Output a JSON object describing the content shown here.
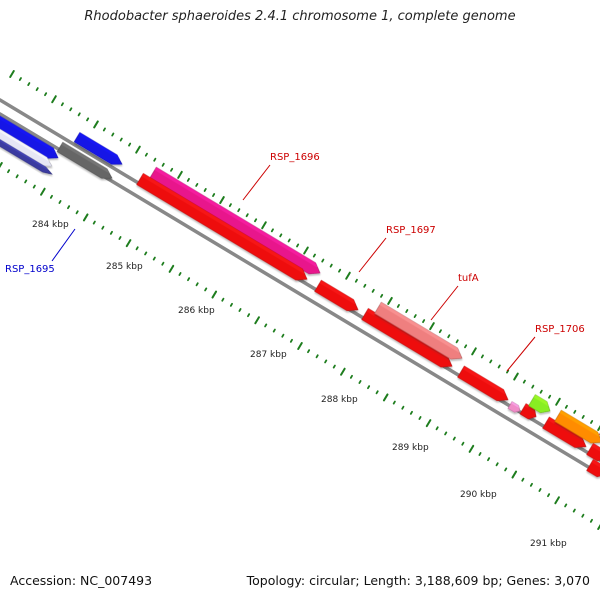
{
  "title": "Rhodobacter sphaeroides 2.4.1 chromosome 1, complete genome",
  "footer": {
    "accession": "Accession: NC_007493",
    "topology": "Topology: circular; Length: 3,188,609 bp; Genes: 3,070"
  },
  "colors": {
    "backbone": "#888888",
    "tick": "#1e7d1e",
    "gene_label_red": "#cc0000",
    "gene_label_blue": "#0000cc"
  },
  "kbp_labels": [
    "284 kbp",
    "285 kbp",
    "286 kbp",
    "287 kbp",
    "288 kbp",
    "289 kbp",
    "290 kbp",
    "291 kbp"
  ],
  "gene_labels": [
    {
      "text": "RSP_1695",
      "color": "#0000cc"
    },
    {
      "text": "RSP_1696",
      "color": "#cc0000"
    },
    {
      "text": "RSP_1697",
      "color": "#cc0000"
    },
    {
      "text": "tufA",
      "color": "#cc0000"
    },
    {
      "text": "RSP_1706",
      "color": "#cc0000"
    }
  ],
  "features": [
    {
      "name": "blue-feature",
      "color": "#1414e6"
    },
    {
      "name": "white-feature",
      "color": "#e6e6f5"
    },
    {
      "name": "navy-feature",
      "color": "#3a3aa0"
    },
    {
      "name": "blue-feature",
      "color": "#1414e6"
    },
    {
      "name": "gray-feature",
      "color": "#666666"
    },
    {
      "name": "magenta-feature",
      "color": "#e8198c"
    },
    {
      "name": "red-feature",
      "color": "#ee1111"
    },
    {
      "name": "red-feature",
      "color": "#ee1111"
    },
    {
      "name": "red-feature",
      "color": "#ee1111"
    },
    {
      "name": "salmon-feature",
      "color": "#ef7f7f"
    },
    {
      "name": "red-feature",
      "color": "#ee1111"
    },
    {
      "name": "red-feature",
      "color": "#ee1111"
    },
    {
      "name": "red-feature",
      "color": "#ee1111"
    },
    {
      "name": "pink-feature",
      "color": "#f08cc8"
    },
    {
      "name": "lime-feature",
      "color": "#88ee22"
    },
    {
      "name": "orange-feature",
      "color": "#ff8c00"
    },
    {
      "name": "red-feature",
      "color": "#ee1111"
    },
    {
      "name": "red-feature",
      "color": "#ee1111"
    },
    {
      "name": "red-feature",
      "color": "#ee1111"
    }
  ]
}
